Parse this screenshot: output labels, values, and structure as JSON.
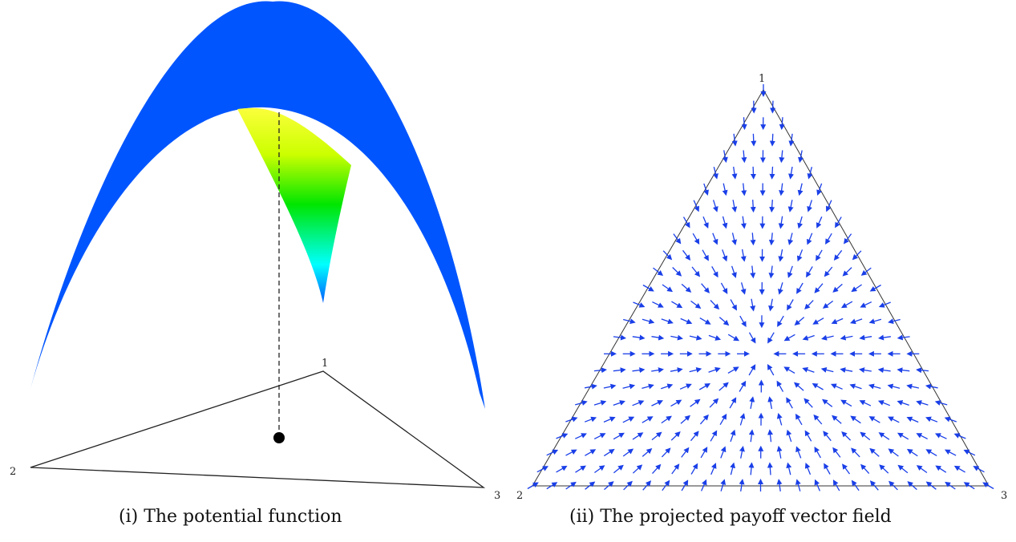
{
  "left_panel": {
    "caption": "(i)  The potential function",
    "vertex_labels": [
      "1",
      "2",
      "3"
    ]
  },
  "right_panel": {
    "caption": "(ii)  The projected payoff vector field",
    "vertex_labels": [
      "1",
      "2",
      "3"
    ],
    "arrow_color": "#1a3fe8"
  },
  "colors": {
    "surface_gradient": [
      "#ff1a00",
      "#ff8c00",
      "#ffff00",
      "#00e600",
      "#00ffff",
      "#0055ff"
    ],
    "outline": "#222222"
  }
}
